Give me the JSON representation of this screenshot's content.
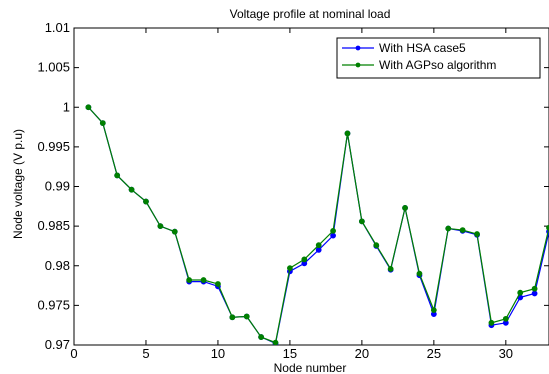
{
  "chart_data": {
    "type": "line",
    "title": "Voltage profile at nominal load",
    "xlabel": "Node number",
    "ylabel": "Node voltage (V p.u)",
    "xlim": [
      0,
      33
    ],
    "ylim": [
      0.97,
      1.01
    ],
    "xticks": [
      0,
      5,
      10,
      15,
      20,
      25,
      30
    ],
    "yticks": [
      0.97,
      0.975,
      0.98,
      0.985,
      0.99,
      0.995,
      1,
      1.005,
      1.01
    ],
    "ytick_labels": [
      "0.97",
      "0.975",
      "0.98",
      "0.985",
      "0.99",
      "0.995",
      "1",
      "1.005",
      "1.01"
    ],
    "grid": false,
    "legend_position": "top-right",
    "x": [
      1,
      2,
      3,
      4,
      5,
      6,
      7,
      8,
      9,
      10,
      11,
      12,
      13,
      14,
      15,
      16,
      17,
      18,
      19,
      20,
      21,
      22,
      23,
      24,
      25,
      26,
      27,
      28,
      29,
      30,
      31,
      32,
      33
    ],
    "series": [
      {
        "name": "With HSA case5",
        "color": "#0000ff",
        "marker": "circle",
        "values": [
          1.0,
          0.998,
          0.9914,
          0.9896,
          0.9881,
          0.985,
          0.9843,
          0.978,
          0.978,
          0.9774,
          0.9735,
          0.9736,
          0.971,
          0.9702,
          0.9793,
          0.9803,
          0.982,
          0.9838,
          0.9967,
          0.9856,
          0.9825,
          0.9795,
          0.9873,
          0.9788,
          0.9739,
          0.9847,
          0.9844,
          0.9839,
          0.9725,
          0.9728,
          0.976,
          0.9765,
          0.9843
        ]
      },
      {
        "name": "With AGPso algorithm",
        "color": "#008000",
        "marker": "circle",
        "values": [
          1.0,
          0.998,
          0.9914,
          0.9896,
          0.9881,
          0.985,
          0.9843,
          0.9782,
          0.9782,
          0.9777,
          0.9735,
          0.9736,
          0.971,
          0.9703,
          0.9797,
          0.9808,
          0.9826,
          0.9844,
          0.9967,
          0.9856,
          0.9826,
          0.9796,
          0.9873,
          0.979,
          0.9744,
          0.9847,
          0.9845,
          0.984,
          0.9728,
          0.9733,
          0.9766,
          0.9771,
          0.9848
        ]
      }
    ]
  }
}
